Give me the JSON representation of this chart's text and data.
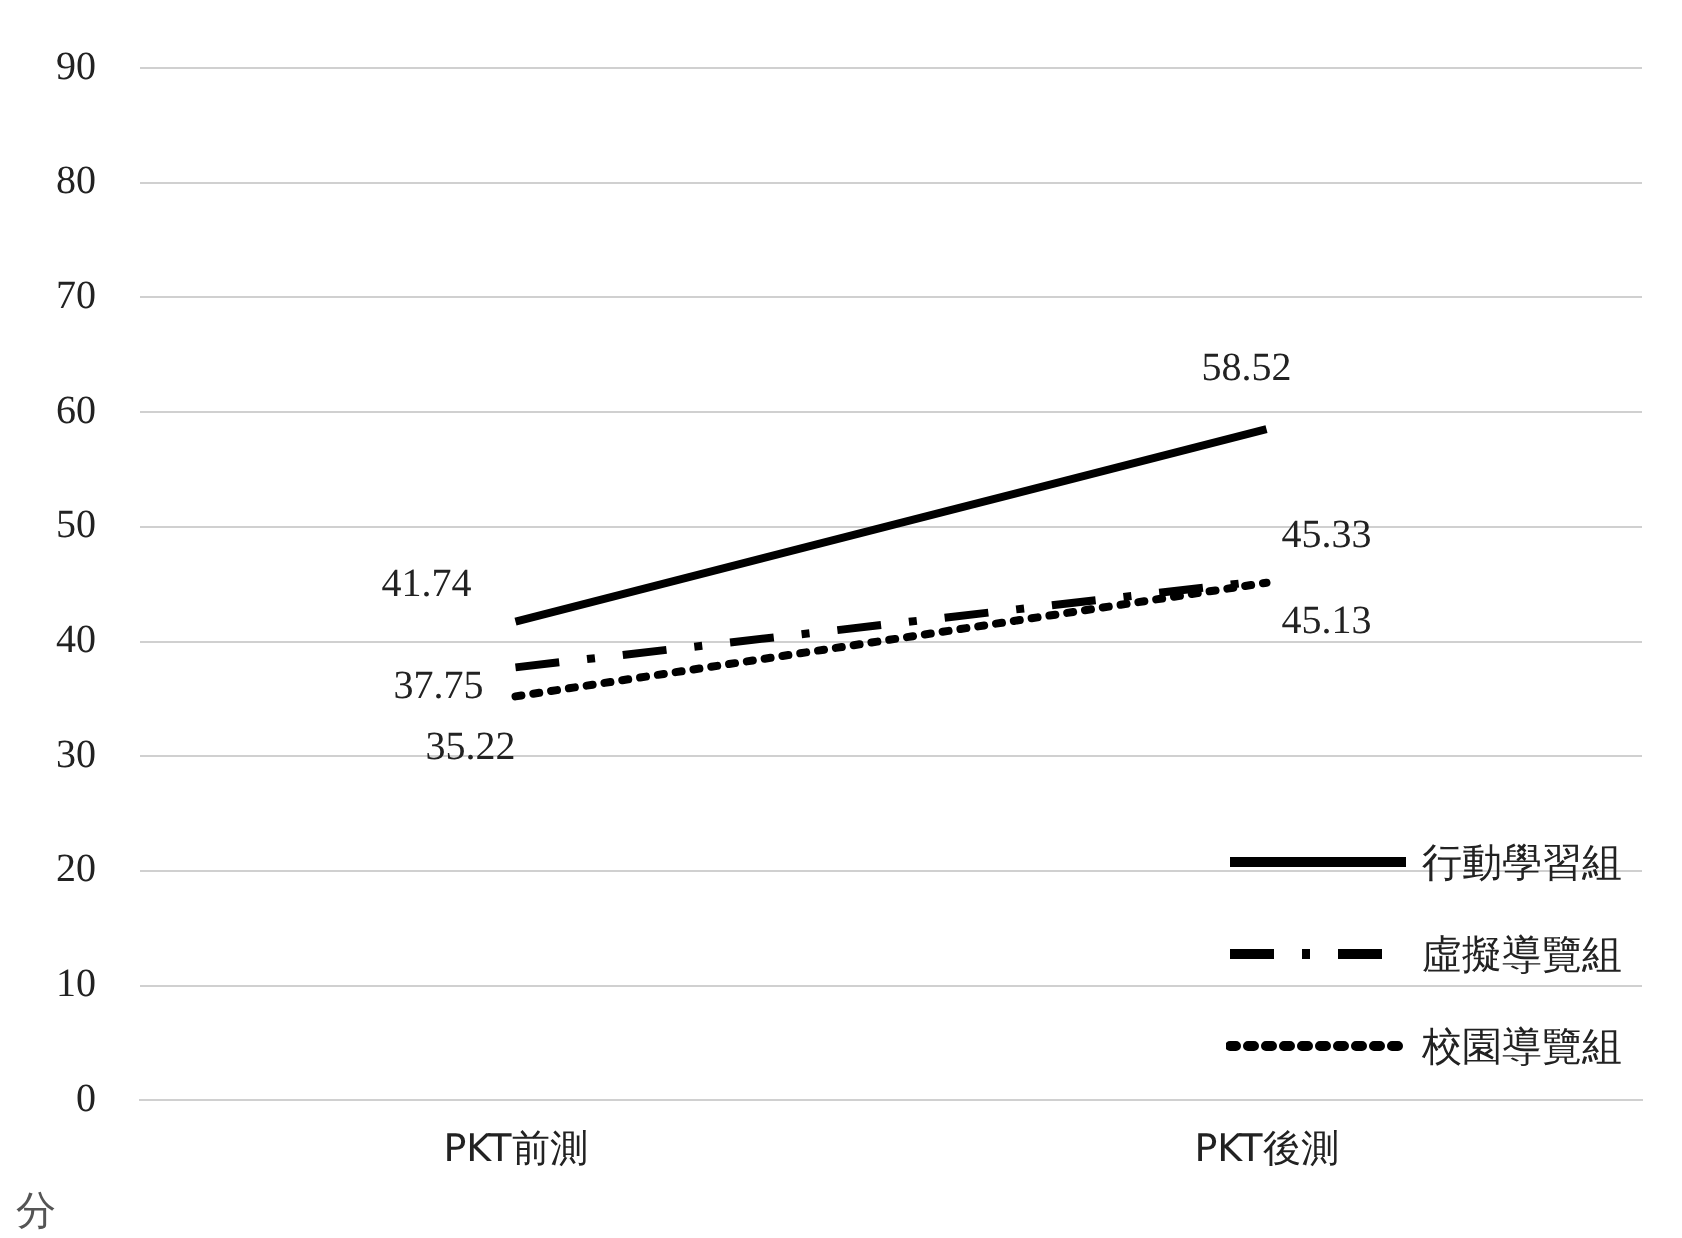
{
  "chart_data": {
    "type": "line",
    "ylabel": "分",
    "categories": [
      "PKT前測",
      "PKT後測"
    ],
    "series": [
      {
        "name": "行動學習組",
        "color": "#000000",
        "values": [
          41.74,
          58.52
        ],
        "line_style": "solid"
      },
      {
        "name": "虛擬導覽組",
        "color": "#000000",
        "values": [
          37.75,
          45.33
        ],
        "line_style": "dashed"
      },
      {
        "name": "校園導覽組",
        "color": "#000000",
        "values": [
          35.22,
          45.13
        ],
        "line_style": "dotted"
      }
    ],
    "ylim": [
      0,
      90
    ],
    "yticks": [
      0,
      10,
      20,
      30,
      40,
      50,
      60,
      70,
      80,
      90
    ],
    "grid": "y",
    "legend": "bottom right",
    "data_labels": true,
    "marker": "none"
  }
}
